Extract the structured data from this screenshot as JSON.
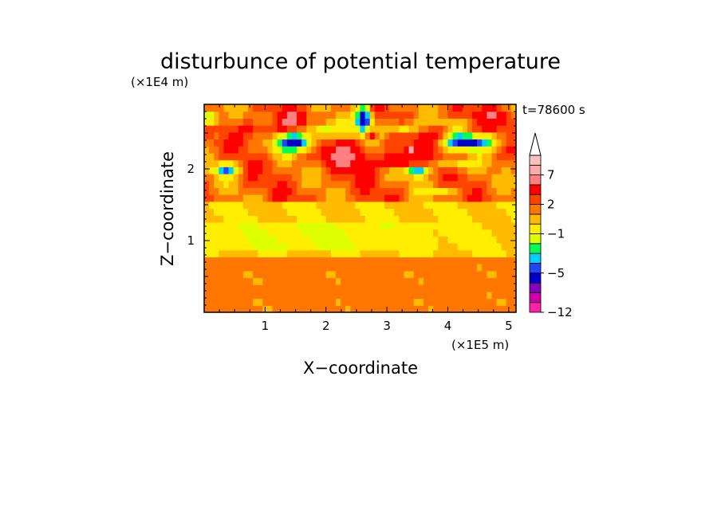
{
  "chart_data": {
    "type": "heatmap",
    "title": "disturbunce of potential temperature",
    "time_label": "t=78600 s",
    "xlabel": "X−coordinate",
    "ylabel": "Z−coordinate",
    "x_scale_label": "(×1E5 m)",
    "y_scale_label": "(×1E4 m)",
    "xlim": [
      0,
      5.12
    ],
    "ylim": [
      0,
      2.9
    ],
    "x_ticks": [
      "1",
      "2",
      "3",
      "4",
      "5"
    ],
    "y_ticks": [
      "1",
      "2"
    ],
    "colorbar": {
      "levels": [
        -12,
        -11,
        -9,
        -7,
        -5,
        -4,
        -3,
        -2,
        -1,
        0,
        1,
        2,
        3,
        5,
        7,
        8,
        9
      ],
      "colors": [
        "#ff22a8",
        "#cc00aa",
        "#8800bb",
        "#0000cc",
        "#2244ff",
        "#00ccff",
        "#00ff55",
        "#ddff00",
        "#ffee00",
        "#ffbb00",
        "#ff7700",
        "#ff4400",
        "#ff0000",
        "#ff8080",
        "#ffaaaa",
        "#ffc0c0"
      ],
      "labels": [
        "−12",
        "−5",
        "−1",
        "2",
        "7"
      ]
    },
    "field": {
      "description_rows_bottom_to_top": "z from 0 to 2.9 (x1E4 m), x from 0 to 5.12 (x1E5 m)",
      "nx": 64,
      "nz": 30
    }
  }
}
